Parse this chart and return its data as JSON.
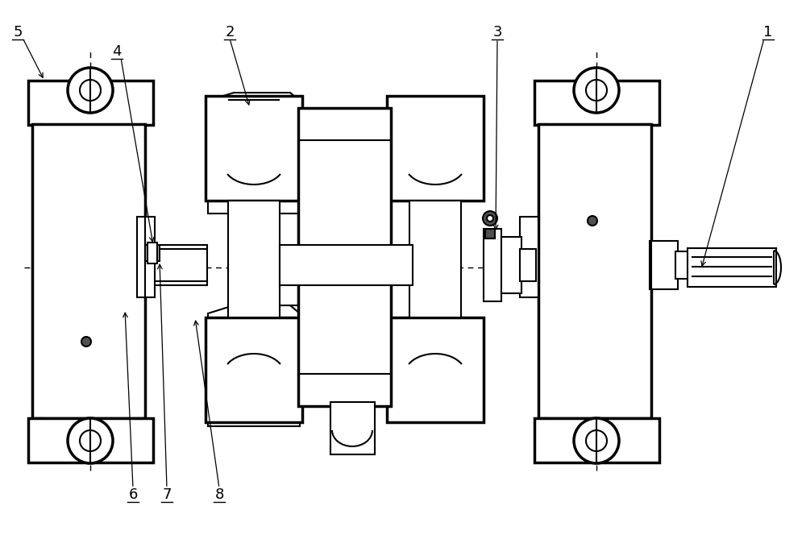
{
  "bg_color": "#ffffff",
  "lc": "#000000",
  "lw": 1.5,
  "tlw": 2.5,
  "gray": "#c8c8c8",
  "white": "#ffffff",
  "dark": "#505050"
}
